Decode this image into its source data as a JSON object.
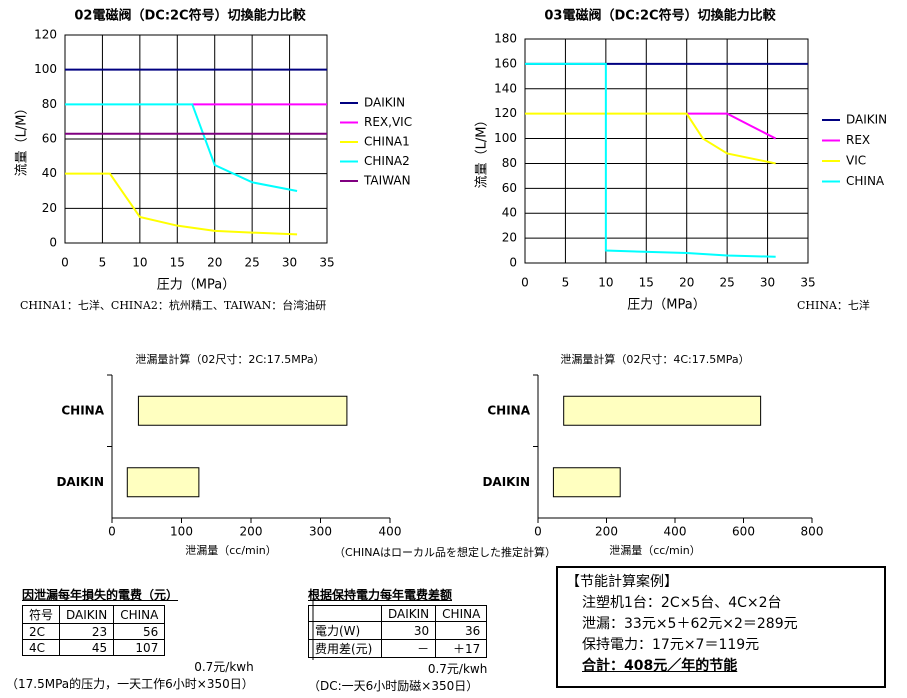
{
  "chart_data": [
    {
      "type": "line",
      "title": "02電磁阀（DC:2C符号）切換能力比較",
      "x_label": "圧力（MPa）",
      "y_label": "流量（L/M）",
      "xlim": [
        0,
        35
      ],
      "xticks": [
        0,
        5,
        10,
        15,
        20,
        25,
        30,
        35
      ],
      "ylim": [
        0,
        120
      ],
      "yticks": [
        0,
        20,
        40,
        60,
        80,
        100,
        120
      ],
      "grid": true,
      "legend": "right",
      "note": "CHINA1：七洋、CHINA2：杭州精工、TAIWAN：台湾油研",
      "series": [
        {
          "name": "DAIKIN",
          "color": "#000080",
          "x": [
            0,
            35
          ],
          "values": [
            100,
            100
          ]
        },
        {
          "name": "REX,VIC",
          "color": "#ff00ff",
          "x": [
            17,
            35
          ],
          "values": [
            80,
            80
          ]
        },
        {
          "name": "CHINA1",
          "color": "#ffff00",
          "x": [
            0,
            6,
            10,
            15,
            20,
            25,
            31
          ],
          "values": [
            40,
            40,
            15,
            10,
            7,
            6,
            5
          ]
        },
        {
          "name": "CHINA2",
          "color": "#00ffff",
          "x": [
            0,
            17,
            20,
            25,
            31
          ],
          "values": [
            80,
            80,
            45,
            35,
            30
          ]
        },
        {
          "name": "TAIWAN",
          "color": "#800080",
          "x": [
            0,
            35
          ],
          "values": [
            63,
            63
          ]
        }
      ]
    },
    {
      "type": "line",
      "title": "03電磁阀（DC:2C符号）切換能力比較",
      "x_label": "圧力（MPa）",
      "y_label": "流量（L/M）",
      "xlim": [
        0,
        35
      ],
      "xticks": [
        0,
        5,
        10,
        15,
        20,
        25,
        30,
        35
      ],
      "ylim": [
        0,
        180
      ],
      "yticks": [
        0,
        20,
        40,
        60,
        80,
        100,
        120,
        140,
        160,
        180
      ],
      "grid": true,
      "legend": "right",
      "note": "CHINA：七洋",
      "series": [
        {
          "name": "DAIKIN",
          "color": "#000080",
          "x": [
            0,
            35
          ],
          "values": [
            160,
            160
          ]
        },
        {
          "name": "REX",
          "color": "#ff00ff",
          "x": [
            20,
            25,
            28,
            31
          ],
          "values": [
            120,
            120,
            110,
            100
          ]
        },
        {
          "name": "VIC",
          "color": "#ffff00",
          "x": [
            0,
            20,
            22,
            25,
            31
          ],
          "values": [
            120,
            120,
            100,
            88,
            80
          ]
        },
        {
          "name": "CHINA",
          "color": "#00ffff",
          "x": [
            0,
            10,
            10,
            20,
            25,
            31
          ],
          "values": [
            160,
            160,
            10,
            8,
            6,
            5
          ]
        }
      ]
    },
    {
      "type": "bar",
      "orientation": "horizontal",
      "title": "泄漏量計算（02尺寸：2C:17.5MPa）",
      "x_label": "泄漏量（cc/min）",
      "categories": [
        "CHINA",
        "DAIKIN"
      ],
      "starts": [
        38,
        22
      ],
      "values": [
        338,
        125
      ],
      "color": "#ffffc0",
      "xlim": [
        0,
        400
      ],
      "xticks": [
        0,
        100,
        200,
        300,
        400
      ]
    },
    {
      "type": "bar",
      "orientation": "horizontal",
      "title": "泄漏量計算（02尺寸：4C:17.5MPa）",
      "x_label": "泄漏量（cc/min）",
      "categories": [
        "CHINA",
        "DAIKIN"
      ],
      "starts": [
        75,
        45
      ],
      "values": [
        650,
        240
      ],
      "color": "#ffffc0",
      "xlim": [
        0,
        800
      ],
      "xticks": [
        0,
        200,
        400,
        600,
        800
      ]
    }
  ],
  "center_note": "（CHINAはローカル品を想定した推定計算）",
  "table1": {
    "title": "因泄漏每年損失的電费（元）",
    "header": [
      "符号",
      "DAIKIN",
      "CHINA"
    ],
    "rows": [
      [
        "2C",
        "23",
        "56"
      ],
      [
        "4C",
        "45",
        "107"
      ]
    ],
    "rate": "0.7元/kwh",
    "note": "（17.5MPa的压力，一天工作6小时×350日）"
  },
  "table2": {
    "title": "根据保持電力每年電费差额",
    "header": [
      "DAIKIN",
      "CHINA"
    ],
    "rows": [
      [
        "電力(W)",
        "30",
        "36"
      ],
      [
        "费用差(元)",
        "－",
        "＋17"
      ]
    ],
    "rate": "0.7元/kwh",
    "note": "（DC:一天6小时励磁×350日）"
  },
  "case": {
    "title": "【节能計算案例】",
    "lines": [
      "注塑机1台：2C×5台、4C×2台",
      "泄漏：33元×5＋62元×2＝289元",
      "保持電力：17元×7＝119元"
    ],
    "total": "合計：408元／年的节能"
  }
}
